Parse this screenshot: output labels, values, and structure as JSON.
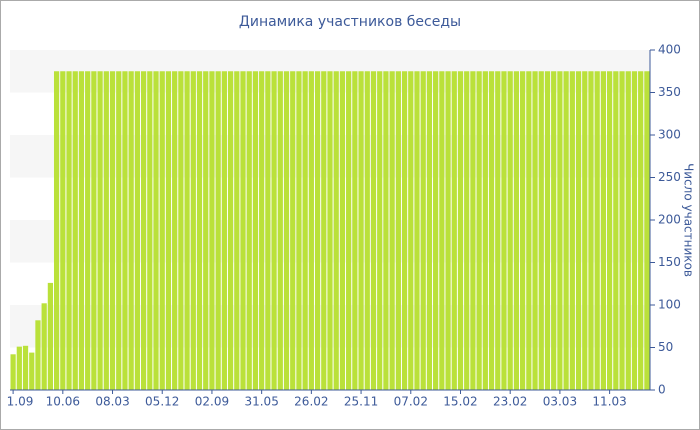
{
  "chart_data": {
    "type": "bar",
    "title": "Динамика участников беседы",
    "y_label": "Число участников",
    "categories": [
      "1.09",
      null,
      null,
      null,
      null,
      null,
      null,
      null,
      "10.06",
      null,
      null,
      null,
      null,
      null,
      null,
      null,
      "08.03",
      null,
      null,
      null,
      null,
      null,
      null,
      null,
      "05.12",
      null,
      null,
      null,
      null,
      null,
      null,
      null,
      "02.09",
      null,
      null,
      null,
      null,
      null,
      null,
      null,
      "31.05",
      null,
      null,
      null,
      null,
      null,
      null,
      null,
      "26.02",
      null,
      null,
      null,
      null,
      null,
      null,
      null,
      "25.11",
      null,
      null,
      null,
      null,
      null,
      null,
      null,
      "07.02",
      null,
      null,
      null,
      null,
      null,
      null,
      null,
      "15.02",
      null,
      null,
      null,
      null,
      null,
      null,
      null,
      "23.02",
      null,
      null,
      null,
      null,
      null,
      null,
      null,
      "03.03",
      null,
      null,
      null,
      null,
      null,
      null,
      null,
      "11.03",
      null,
      null,
      null,
      null,
      null,
      null
    ],
    "values": [
      42,
      51,
      52,
      44,
      82,
      102,
      126,
      375,
      375,
      375,
      375,
      375,
      375,
      375,
      375,
      375,
      375,
      375,
      375,
      375,
      375,
      375,
      375,
      375,
      375,
      375,
      375,
      375,
      375,
      375,
      375,
      375,
      375,
      375,
      375,
      375,
      375,
      375,
      375,
      375,
      375,
      375,
      375,
      375,
      375,
      375,
      375,
      375,
      375,
      375,
      375,
      375,
      375,
      375,
      375,
      375,
      375,
      375,
      375,
      375,
      375,
      375,
      375,
      375,
      375,
      375,
      375,
      375,
      375,
      375,
      375,
      375,
      375,
      375,
      375,
      375,
      375,
      375,
      375,
      375,
      375,
      375,
      375,
      375,
      375,
      375,
      375,
      375,
      375,
      375,
      375,
      375,
      375,
      375,
      375,
      375,
      375,
      375,
      375,
      375,
      375,
      375,
      375
    ],
    "color": "#bae13a",
    "ylim": [
      0,
      400
    ],
    "yticks": [
      0,
      50,
      100,
      150,
      200,
      250,
      300,
      350,
      400
    ],
    "y_axis_side": "right",
    "banded_grid": true
  }
}
